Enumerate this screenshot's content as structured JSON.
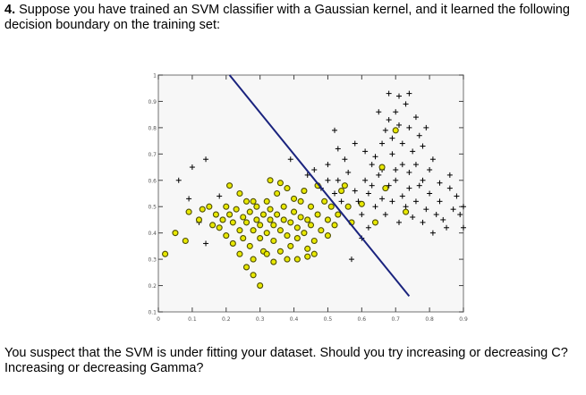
{
  "question": {
    "number": "4.",
    "text": "Suppose you have trained an SVM classifier with a Gaussian kernel, and it learned the following decision boundary on the training set:"
  },
  "followup": {
    "text": "You suspect that the SVM is under fitting your dataset. Should you try increasing or decreasing C? Increasing or decreasing Gamma?"
  },
  "colors": {
    "circle_fill": "#e8e800",
    "circle_stroke": "#4d4d00",
    "plus": "#000000",
    "boundary": "#1a237e",
    "plot_bg": "#f7f7f7",
    "frame": "#888888"
  },
  "chart_data": {
    "type": "scatter",
    "xlim": [
      0,
      0.9
    ],
    "ylim": [
      0.1,
      1
    ],
    "x_ticks": [
      "0",
      "0.1",
      "0.2",
      "0.3",
      "0.4",
      "0.5",
      "0.6",
      "0.7",
      "0.8",
      "0.9"
    ],
    "y_ticks": [
      "0.1",
      "0.2",
      "0.3",
      "0.4",
      "0.5",
      "0.6",
      "0.7",
      "0.8",
      "0.9",
      "1"
    ],
    "boundary": [
      [
        0.21,
        1.0
      ],
      [
        0.74,
        0.16
      ]
    ],
    "series": [
      {
        "marker": "circle",
        "points": [
          [
            0.02,
            0.32
          ],
          [
            0.05,
            0.4
          ],
          [
            0.09,
            0.48
          ],
          [
            0.08,
            0.37
          ],
          [
            0.12,
            0.45
          ],
          [
            0.13,
            0.49
          ],
          [
            0.15,
            0.5
          ],
          [
            0.16,
            0.43
          ],
          [
            0.17,
            0.47
          ],
          [
            0.18,
            0.42
          ],
          [
            0.19,
            0.45
          ],
          [
            0.2,
            0.39
          ],
          [
            0.2,
            0.5
          ],
          [
            0.21,
            0.47
          ],
          [
            0.22,
            0.44
          ],
          [
            0.22,
            0.36
          ],
          [
            0.23,
            0.49
          ],
          [
            0.24,
            0.41
          ],
          [
            0.24,
            0.32
          ],
          [
            0.25,
            0.46
          ],
          [
            0.25,
            0.38
          ],
          [
            0.26,
            0.52
          ],
          [
            0.26,
            0.44
          ],
          [
            0.27,
            0.35
          ],
          [
            0.27,
            0.48
          ],
          [
            0.28,
            0.41
          ],
          [
            0.28,
            0.3
          ],
          [
            0.29,
            0.45
          ],
          [
            0.29,
            0.5
          ],
          [
            0.3,
            0.38
          ],
          [
            0.3,
            0.43
          ],
          [
            0.31,
            0.47
          ],
          [
            0.31,
            0.33
          ],
          [
            0.32,
            0.52
          ],
          [
            0.32,
            0.4
          ],
          [
            0.33,
            0.45
          ],
          [
            0.33,
            0.49
          ],
          [
            0.34,
            0.37
          ],
          [
            0.34,
            0.43
          ],
          [
            0.35,
            0.47
          ],
          [
            0.35,
            0.55
          ],
          [
            0.36,
            0.41
          ],
          [
            0.36,
            0.33
          ],
          [
            0.37,
            0.45
          ],
          [
            0.37,
            0.5
          ],
          [
            0.38,
            0.39
          ],
          [
            0.38,
            0.57
          ],
          [
            0.39,
            0.44
          ],
          [
            0.39,
            0.35
          ],
          [
            0.4,
            0.48
          ],
          [
            0.4,
            0.53
          ],
          [
            0.41,
            0.42
          ],
          [
            0.41,
            0.38
          ],
          [
            0.42,
            0.46
          ],
          [
            0.42,
            0.52
          ],
          [
            0.43,
            0.56
          ],
          [
            0.43,
            0.4
          ],
          [
            0.44,
            0.45
          ],
          [
            0.44,
            0.34
          ],
          [
            0.45,
            0.5
          ],
          [
            0.45,
            0.43
          ],
          [
            0.46,
            0.37
          ],
          [
            0.47,
            0.47
          ],
          [
            0.47,
            0.58
          ],
          [
            0.48,
            0.41
          ],
          [
            0.49,
            0.52
          ],
          [
            0.5,
            0.45
          ],
          [
            0.5,
            0.39
          ],
          [
            0.51,
            0.5
          ],
          [
            0.52,
            0.43
          ],
          [
            0.53,
            0.47
          ],
          [
            0.54,
            0.56
          ],
          [
            0.55,
            0.58
          ],
          [
            0.56,
            0.5
          ],
          [
            0.57,
            0.44
          ],
          [
            0.21,
            0.58
          ],
          [
            0.24,
            0.55
          ],
          [
            0.28,
            0.52
          ],
          [
            0.33,
            0.6
          ],
          [
            0.36,
            0.59
          ],
          [
            0.28,
            0.24
          ],
          [
            0.3,
            0.2
          ],
          [
            0.34,
            0.29
          ],
          [
            0.38,
            0.3
          ],
          [
            0.41,
            0.3
          ],
          [
            0.44,
            0.31
          ],
          [
            0.46,
            0.32
          ],
          [
            0.32,
            0.32
          ],
          [
            0.26,
            0.27
          ],
          [
            0.64,
            0.44
          ],
          [
            0.66,
            0.65
          ],
          [
            0.67,
            0.57
          ],
          [
            0.7,
            0.79
          ],
          [
            0.73,
            0.48
          ],
          [
            0.6,
            0.51
          ]
        ]
      },
      {
        "marker": "plus",
        "points": [
          [
            0.06,
            0.6
          ],
          [
            0.1,
            0.65
          ],
          [
            0.14,
            0.68
          ],
          [
            0.09,
            0.53
          ],
          [
            0.12,
            0.44
          ],
          [
            0.18,
            0.54
          ],
          [
            0.14,
            0.36
          ],
          [
            0.39,
            0.68
          ],
          [
            0.44,
            0.62
          ],
          [
            0.48,
            0.57
          ],
          [
            0.5,
            0.66
          ],
          [
            0.53,
            0.6
          ],
          [
            0.56,
            0.63
          ],
          [
            0.58,
            0.56
          ],
          [
            0.59,
            0.52
          ],
          [
            0.6,
            0.47
          ],
          [
            0.61,
            0.6
          ],
          [
            0.62,
            0.55
          ],
          [
            0.63,
            0.58
          ],
          [
            0.64,
            0.5
          ],
          [
            0.65,
            0.62
          ],
          [
            0.66,
            0.53
          ],
          [
            0.67,
            0.47
          ],
          [
            0.68,
            0.58
          ],
          [
            0.69,
            0.52
          ],
          [
            0.7,
            0.6
          ],
          [
            0.71,
            0.44
          ],
          [
            0.72,
            0.54
          ],
          [
            0.73,
            0.5
          ],
          [
            0.74,
            0.57
          ],
          [
            0.75,
            0.46
          ],
          [
            0.76,
            0.52
          ],
          [
            0.77,
            0.58
          ],
          [
            0.78,
            0.44
          ],
          [
            0.79,
            0.49
          ],
          [
            0.8,
            0.55
          ],
          [
            0.82,
            0.47
          ],
          [
            0.83,
            0.52
          ],
          [
            0.85,
            0.42
          ],
          [
            0.86,
            0.57
          ],
          [
            0.87,
            0.49
          ],
          [
            0.88,
            0.54
          ],
          [
            0.89,
            0.47
          ],
          [
            0.84,
            0.45
          ],
          [
            0.81,
            0.4
          ],
          [
            0.9,
            0.42
          ],
          [
            0.9,
            0.5
          ],
          [
            0.6,
            0.38
          ],
          [
            0.62,
            0.42
          ],
          [
            0.57,
            0.3
          ],
          [
            0.66,
            0.74
          ],
          [
            0.67,
            0.79
          ],
          [
            0.68,
            0.83
          ],
          [
            0.69,
            0.76
          ],
          [
            0.7,
            0.86
          ],
          [
            0.71,
            0.81
          ],
          [
            0.72,
            0.74
          ],
          [
            0.73,
            0.89
          ],
          [
            0.74,
            0.8
          ],
          [
            0.75,
            0.71
          ],
          [
            0.76,
            0.84
          ],
          [
            0.77,
            0.77
          ],
          [
            0.78,
            0.73
          ],
          [
            0.79,
            0.8
          ],
          [
            0.69,
            0.7
          ],
          [
            0.72,
            0.66
          ],
          [
            0.74,
            0.63
          ],
          [
            0.76,
            0.66
          ],
          [
            0.78,
            0.6
          ],
          [
            0.64,
            0.69
          ],
          [
            0.61,
            0.71
          ],
          [
            0.58,
            0.74
          ],
          [
            0.53,
            0.72
          ],
          [
            0.52,
            0.79
          ],
          [
            0.66,
            0.64
          ],
          [
            0.7,
            0.64
          ],
          [
            0.8,
            0.64
          ],
          [
            0.46,
            0.64
          ],
          [
            0.55,
            0.68
          ],
          [
            0.63,
            0.66
          ],
          [
            0.54,
            0.52
          ],
          [
            0.52,
            0.55
          ],
          [
            0.5,
            0.6
          ],
          [
            0.71,
            0.92
          ],
          [
            0.74,
            0.93
          ],
          [
            0.68,
            0.93
          ],
          [
            0.65,
            0.86
          ],
          [
            0.81,
            0.68
          ],
          [
            0.83,
            0.59
          ],
          [
            0.86,
            0.62
          ]
        ]
      }
    ]
  }
}
